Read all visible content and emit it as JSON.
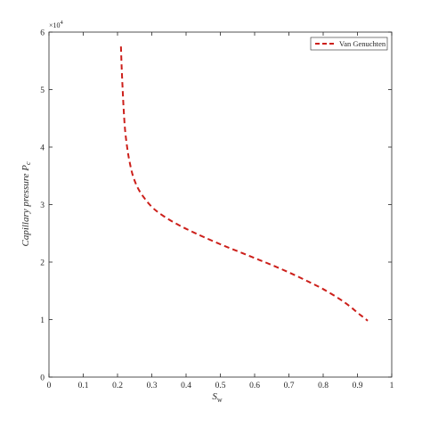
{
  "chart_data": {
    "type": "line",
    "xlabel_main": "S",
    "xlabel_sub": "w",
    "ylabel_main": "Capillary pressure P",
    "ylabel_sub": "c",
    "y_exponent_base": "×10",
    "y_exponent_power": "4",
    "xlim": [
      0,
      1
    ],
    "ylim": [
      0,
      6
    ],
    "y_scale_factor": 10000,
    "xticks": [
      0,
      0.1,
      0.2,
      0.3,
      0.4,
      0.5,
      0.6,
      0.7,
      0.8,
      0.9,
      1
    ],
    "xtick_labels": [
      "0",
      "0.1",
      "0.2",
      "0.3",
      "0.4",
      "0.5",
      "0.6",
      "0.7",
      "0.8",
      "0.9",
      "1"
    ],
    "yticks": [
      0,
      1,
      2,
      3,
      4,
      5,
      6
    ],
    "ytick_labels": [
      "0",
      "1",
      "2",
      "3",
      "4",
      "5",
      "6"
    ],
    "grid": false,
    "legend_position": "top-right",
    "series": [
      {
        "name": "Van Genuchten",
        "color": "#cc1f1a",
        "style": "dashed",
        "x": [
          0.21,
          0.212,
          0.215,
          0.218,
          0.222,
          0.228,
          0.235,
          0.245,
          0.26,
          0.28,
          0.3,
          0.32,
          0.35,
          0.38,
          0.41,
          0.45,
          0.5,
          0.55,
          0.6,
          0.65,
          0.7,
          0.75,
          0.8,
          0.85,
          0.88,
          0.9,
          0.915,
          0.93
        ],
        "y": [
          57500,
          54000,
          50000,
          46500,
          43000,
          40000,
          37500,
          35000,
          32800,
          31000,
          29600,
          28600,
          27400,
          26400,
          25500,
          24400,
          23100,
          21900,
          20700,
          19500,
          18200,
          16800,
          15300,
          13500,
          12200,
          11200,
          10500,
          9800
        ]
      }
    ]
  }
}
